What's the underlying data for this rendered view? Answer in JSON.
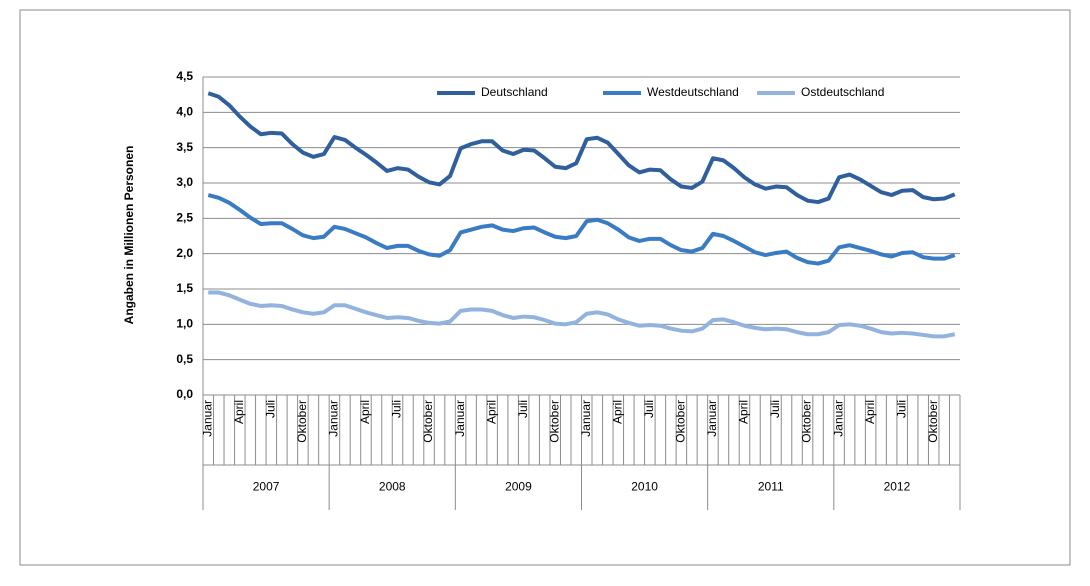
{
  "chart_data": {
    "type": "line",
    "y_label": "Angaben in Millionen Personen",
    "categories": [
      "Januar",
      null,
      null,
      "April",
      null,
      null,
      "Juli",
      null,
      null,
      "Oktober",
      null,
      null,
      "Januar",
      null,
      null,
      "April",
      null,
      null,
      "Juli",
      null,
      null,
      "Oktober",
      null,
      null,
      "Januar",
      null,
      null,
      "April",
      null,
      null,
      "Juli",
      null,
      null,
      "Oktober",
      null,
      null,
      "Januar",
      null,
      null,
      "April",
      null,
      null,
      "Juli",
      null,
      null,
      "Oktober",
      null,
      null,
      "Januar",
      null,
      null,
      "April",
      null,
      null,
      "Juli",
      null,
      null,
      "Oktober",
      null,
      null,
      "Januar",
      null,
      null,
      "April",
      null,
      null,
      "Juli",
      null,
      null,
      "Oktober",
      null,
      null
    ],
    "year_groups": [
      "2007",
      "2008",
      "2009",
      "2010",
      "2011",
      "2012"
    ],
    "series": [
      {
        "name": "Deutschland",
        "color": "#2f5f9c",
        "values": [
          4.27,
          4.22,
          4.1,
          3.94,
          3.8,
          3.69,
          3.71,
          3.7,
          3.55,
          3.43,
          3.37,
          3.41,
          3.65,
          3.61,
          3.5,
          3.4,
          3.29,
          3.17,
          3.21,
          3.19,
          3.09,
          3.01,
          2.98,
          3.1,
          3.49,
          3.55,
          3.59,
          3.59,
          3.46,
          3.41,
          3.47,
          3.46,
          3.35,
          3.23,
          3.21,
          3.28,
          3.62,
          3.64,
          3.57,
          3.41,
          3.25,
          3.15,
          3.19,
          3.18,
          3.05,
          2.95,
          2.93,
          3.02,
          3.35,
          3.32,
          3.21,
          3.08,
          2.98,
          2.92,
          2.95,
          2.94,
          2.83,
          2.75,
          2.73,
          2.78,
          3.08,
          3.12,
          3.05,
          2.96,
          2.87,
          2.83,
          2.89,
          2.9,
          2.8,
          2.77,
          2.78,
          2.84
        ]
      },
      {
        "name": "Westdeutschland",
        "color": "#3a7cc3",
        "values": [
          2.83,
          2.79,
          2.72,
          2.62,
          2.51,
          2.42,
          2.43,
          2.43,
          2.35,
          2.26,
          2.22,
          2.24,
          2.38,
          2.35,
          2.29,
          2.23,
          2.15,
          2.08,
          2.11,
          2.11,
          2.04,
          1.99,
          1.97,
          2.05,
          2.3,
          2.34,
          2.38,
          2.4,
          2.34,
          2.32,
          2.36,
          2.37,
          2.3,
          2.24,
          2.22,
          2.25,
          2.46,
          2.48,
          2.43,
          2.34,
          2.23,
          2.18,
          2.21,
          2.21,
          2.12,
          2.05,
          2.03,
          2.08,
          2.28,
          2.25,
          2.18,
          2.1,
          2.02,
          1.98,
          2.01,
          2.03,
          1.94,
          1.88,
          1.86,
          1.9,
          2.09,
          2.12,
          2.08,
          2.04,
          1.99,
          1.96,
          2.01,
          2.02,
          1.95,
          1.93,
          1.93,
          1.98
        ]
      },
      {
        "name": "Ostdeutschland",
        "color": "#92b3dd",
        "values": [
          1.45,
          1.45,
          1.41,
          1.35,
          1.29,
          1.26,
          1.27,
          1.26,
          1.21,
          1.17,
          1.15,
          1.17,
          1.27,
          1.27,
          1.22,
          1.17,
          1.13,
          1.09,
          1.1,
          1.09,
          1.05,
          1.02,
          1.01,
          1.04,
          1.19,
          1.21,
          1.21,
          1.19,
          1.13,
          1.09,
          1.11,
          1.1,
          1.06,
          1.01,
          1.0,
          1.03,
          1.15,
          1.17,
          1.14,
          1.07,
          1.02,
          0.98,
          0.99,
          0.98,
          0.94,
          0.91,
          0.9,
          0.94,
          1.06,
          1.07,
          1.03,
          0.98,
          0.95,
          0.93,
          0.94,
          0.93,
          0.89,
          0.86,
          0.86,
          0.89,
          0.99,
          1.0,
          0.98,
          0.94,
          0.89,
          0.87,
          0.88,
          0.87,
          0.85,
          0.83,
          0.83,
          0.86
        ]
      }
    ],
    "ylim": [
      0,
      4.5
    ],
    "yticks": [
      {
        "value": 0,
        "label": "0,0"
      },
      {
        "value": 0.5,
        "label": "0,5"
      },
      {
        "value": 1,
        "label": "1,0"
      },
      {
        "value": 1.5,
        "label": "1,5"
      },
      {
        "value": 2,
        "label": "2,0"
      },
      {
        "value": 2.5,
        "label": "2,5"
      },
      {
        "value": 3,
        "label": "3,0"
      },
      {
        "value": 3.5,
        "label": "3,5"
      },
      {
        "value": 4,
        "label": "4,0"
      },
      {
        "value": 4.5,
        "label": "4,5"
      }
    ],
    "grid": true
  }
}
